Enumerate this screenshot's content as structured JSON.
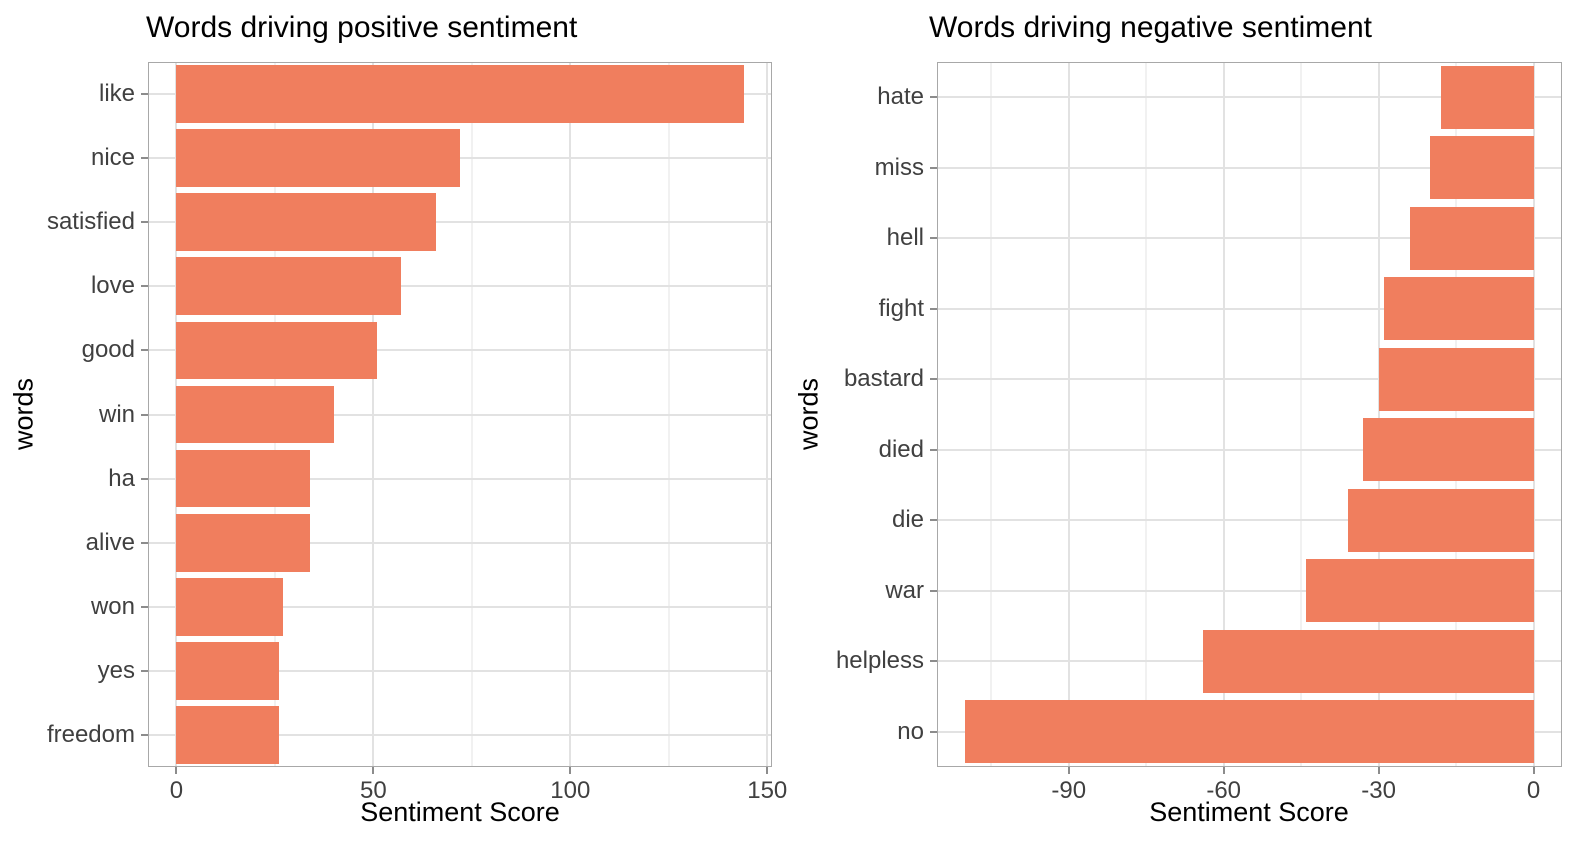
{
  "page": {
    "background": "#FFFFFF"
  },
  "colors": {
    "bar_fill": "#F07E5E",
    "panel_border": "#A8A8A8",
    "grid_major": "#E2E2E2",
    "grid_minor": "#F1F1F1",
    "tick_mark": "#8C8C8C",
    "tick_label_text": "#404040",
    "title_text": "#000000"
  },
  "chart_data": [
    {
      "type": "bar",
      "orientation": "horizontal",
      "title": "Words driving positive sentiment",
      "xlabel": "Sentiment Score",
      "ylabel": "words",
      "categories": [
        "like",
        "nice",
        "satisfied",
        "love",
        "good",
        "win",
        "ha",
        "alive",
        "won",
        "yes",
        "freedom"
      ],
      "values": [
        144,
        72,
        66,
        57,
        51,
        40,
        34,
        34,
        27,
        26,
        26
      ],
      "xlim": [
        -7.2,
        151.2
      ],
      "x_major_ticks": [
        0,
        50,
        100,
        150
      ],
      "x_minor_ticks": [
        25,
        75,
        125
      ],
      "grid": true,
      "legend": false
    },
    {
      "type": "bar",
      "orientation": "horizontal",
      "title": "Words driving negative sentiment",
      "xlabel": "Sentiment Score",
      "ylabel": "words",
      "categories": [
        "hate",
        "miss",
        "hell",
        "fight",
        "bastard",
        "died",
        "die",
        "war",
        "helpless",
        "no"
      ],
      "values": [
        -18,
        -20,
        -24,
        -29,
        -30,
        -33,
        -36,
        -44,
        -64,
        -110
      ],
      "xlim": [
        -115.5,
        5.5
      ],
      "x_major_ticks": [
        -90,
        -60,
        -30,
        0
      ],
      "x_minor_ticks": [
        -105,
        -75,
        -45,
        -15
      ],
      "grid": true,
      "legend": false
    }
  ]
}
